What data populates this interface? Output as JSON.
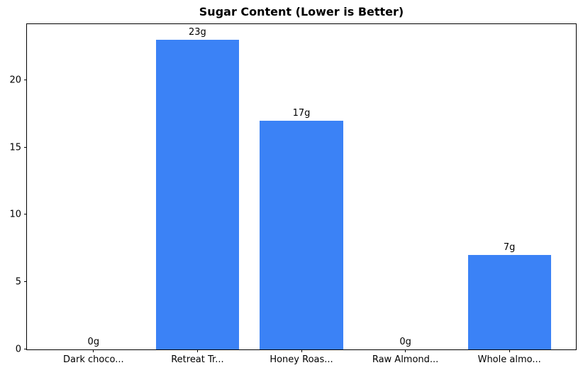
{
  "chart_data": {
    "type": "bar",
    "title": "Sugar Content (Lower is Better)",
    "categories": [
      "Dark choco...",
      "Retreat Tr...",
      "Honey Roas...",
      "Raw Almond...",
      "Whole almo..."
    ],
    "values": [
      0,
      23,
      17,
      0,
      7
    ],
    "value_labels": [
      "0g",
      "23g",
      "17g",
      "0g",
      "7g"
    ],
    "xlabel": "",
    "ylabel": "",
    "yticks": [
      0,
      5,
      10,
      15,
      20
    ],
    "ylim": [
      0,
      24.15
    ],
    "xlim": [
      -0.64,
      4.64
    ],
    "bar_width_units": 0.8,
    "bar_color": "#3b82f6",
    "axis_color": "#000000",
    "text_color": "#000000",
    "background_color": "#ffffff",
    "grid": false,
    "legend": null
  }
}
